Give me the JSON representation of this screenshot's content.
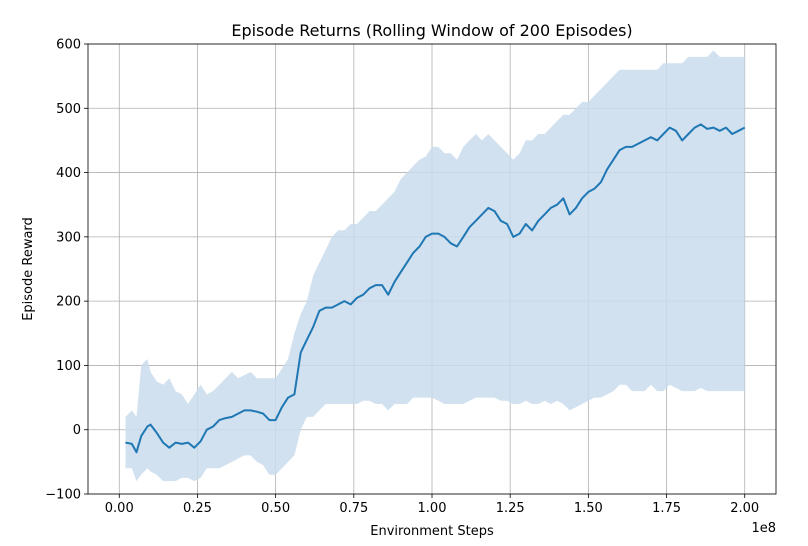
{
  "chart_data": {
    "type": "line",
    "title": "Episode Returns (Rolling Window of 200 Episodes)",
    "xlabel": "Environment Steps",
    "ylabel": "Episode Reward",
    "x_offset_label": "1e8",
    "xlim": [
      -0.1,
      2.1
    ],
    "ylim": [
      -100,
      600
    ],
    "x_ticks": [
      0.0,
      0.25,
      0.5,
      0.75,
      1.0,
      1.25,
      1.5,
      1.75,
      2.0
    ],
    "x_tick_labels": [
      "0.00",
      "0.25",
      "0.50",
      "0.75",
      "1.00",
      "1.25",
      "1.50",
      "1.75",
      "2.00"
    ],
    "y_ticks": [
      -100,
      0,
      100,
      200,
      300,
      400,
      500,
      600
    ],
    "y_tick_labels": [
      "−100",
      "0",
      "100",
      "200",
      "300",
      "400",
      "500",
      "600"
    ],
    "grid": true,
    "colors": {
      "line": "#1f77b4",
      "band": "#c9dcec"
    },
    "series": [
      {
        "x": [
          0.02,
          0.04,
          0.055,
          0.07,
          0.09,
          0.1,
          0.12,
          0.14,
          0.16,
          0.18,
          0.2,
          0.22,
          0.24,
          0.26,
          0.28,
          0.3,
          0.32,
          0.34,
          0.36,
          0.38,
          0.4,
          0.42,
          0.44,
          0.46,
          0.48,
          0.5,
          0.52,
          0.54,
          0.56,
          0.58,
          0.6,
          0.62,
          0.64,
          0.66,
          0.68,
          0.7,
          0.72,
          0.74,
          0.76,
          0.78,
          0.8,
          0.82,
          0.84,
          0.86,
          0.88,
          0.9,
          0.92,
          0.94,
          0.96,
          0.98,
          1.0,
          1.02,
          1.04,
          1.06,
          1.08,
          1.1,
          1.12,
          1.14,
          1.16,
          1.18,
          1.2,
          1.22,
          1.24,
          1.26,
          1.28,
          1.3,
          1.32,
          1.34,
          1.36,
          1.38,
          1.4,
          1.42,
          1.44,
          1.46,
          1.48,
          1.5,
          1.52,
          1.54,
          1.56,
          1.58,
          1.6,
          1.62,
          1.64,
          1.66,
          1.68,
          1.7,
          1.72,
          1.74,
          1.76,
          1.78,
          1.8,
          1.82,
          1.84,
          1.86,
          1.88,
          1.9,
          1.92,
          1.94,
          1.96,
          1.98,
          2.0
        ],
        "values": [
          -20,
          -22,
          -35,
          -10,
          5,
          8,
          -5,
          -20,
          -28,
          -20,
          -22,
          -20,
          -28,
          -18,
          0,
          5,
          15,
          18,
          20,
          25,
          30,
          30,
          28,
          25,
          15,
          15,
          35,
          50,
          55,
          120,
          140,
          160,
          185,
          190,
          190,
          195,
          200,
          195,
          205,
          210,
          220,
          225,
          225,
          210,
          230,
          245,
          260,
          275,
          285,
          300,
          305,
          305,
          300,
          290,
          285,
          300,
          315,
          325,
          335,
          345,
          340,
          325,
          320,
          300,
          305,
          320,
          310,
          325,
          335,
          345,
          350,
          360,
          335,
          345,
          360,
          370,
          375,
          385,
          405,
          420,
          435,
          440,
          440,
          445,
          450,
          455,
          450,
          460,
          470,
          465,
          450,
          460,
          470,
          475,
          468,
          470,
          465,
          470,
          460,
          465,
          470
        ],
        "band_upper": [
          20,
          30,
          20,
          100,
          110,
          90,
          75,
          70,
          80,
          60,
          55,
          40,
          55,
          70,
          55,
          60,
          70,
          80,
          90,
          80,
          85,
          90,
          80,
          80,
          80,
          80,
          95,
          110,
          150,
          180,
          200,
          240,
          260,
          280,
          300,
          310,
          310,
          320,
          320,
          330,
          340,
          340,
          350,
          360,
          370,
          390,
          400,
          410,
          420,
          425,
          440,
          440,
          430,
          430,
          420,
          440,
          450,
          460,
          450,
          460,
          450,
          440,
          430,
          420,
          430,
          450,
          450,
          460,
          460,
          470,
          480,
          490,
          490,
          500,
          510,
          510,
          520,
          530,
          540,
          550,
          560,
          560,
          560,
          560,
          560,
          560,
          560,
          570,
          570,
          570,
          570,
          580,
          580,
          580,
          580,
          590,
          580,
          580,
          580,
          580,
          580
        ],
        "band_lower": [
          -60,
          -60,
          -80,
          -70,
          -60,
          -65,
          -70,
          -80,
          -80,
          -80,
          -75,
          -75,
          -80,
          -75,
          -60,
          -60,
          -60,
          -55,
          -50,
          -45,
          -40,
          -40,
          -50,
          -55,
          -70,
          -70,
          -60,
          -50,
          -40,
          0,
          20,
          20,
          30,
          40,
          40,
          40,
          40,
          40,
          40,
          45,
          45,
          40,
          40,
          30,
          40,
          40,
          40,
          50,
          50,
          50,
          50,
          45,
          40,
          40,
          40,
          40,
          45,
          50,
          50,
          50,
          50,
          45,
          45,
          40,
          40,
          45,
          40,
          40,
          45,
          40,
          45,
          40,
          30,
          35,
          40,
          45,
          50,
          50,
          55,
          60,
          70,
          70,
          60,
          60,
          60,
          70,
          60,
          60,
          70,
          65,
          60,
          60,
          60,
          65,
          60,
          60,
          60,
          60,
          60,
          60,
          60
        ]
      }
    ]
  }
}
